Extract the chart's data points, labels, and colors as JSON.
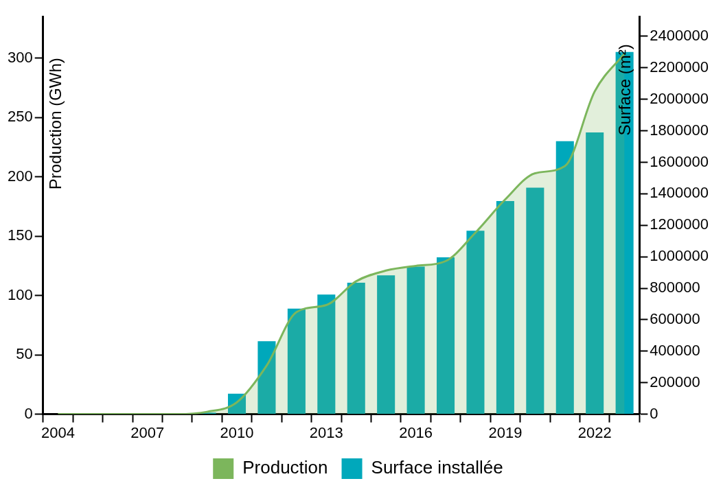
{
  "chart_data": {
    "type": "bar",
    "categories": [
      "2004",
      null,
      null,
      "2007",
      null,
      null,
      "2010",
      null,
      null,
      "2013",
      null,
      null,
      "2016",
      null,
      null,
      "2019",
      null,
      null,
      "2022",
      null
    ],
    "ylabel": "Production (GWh)",
    "y2label": "Surface (m²)",
    "ylim": [
      0,
      335
    ],
    "yticks": [
      0,
      50,
      100,
      150,
      200,
      250,
      300
    ],
    "y2lim": [
      0,
      2525000
    ],
    "y2ticks": [
      0,
      200000,
      400000,
      600000,
      800000,
      1000000,
      1200000,
      1400000,
      1600000,
      1800000,
      2000000,
      2200000,
      2400000
    ],
    "series": [
      {
        "name": "Production",
        "type": "area",
        "color": "#7cb65c",
        "values": [
          0,
          0,
          0,
          0,
          0,
          2,
          10,
          41,
          86,
          92,
          112,
          121,
          125,
          129,
          153,
          181,
          203,
          209,
          272,
          304
        ]
      },
      {
        "name": "Surface installée",
        "axis": "y2",
        "color": "#00a8bb",
        "values": [
          null,
          null,
          null,
          null,
          null,
          10000,
          130000,
          464000,
          671000,
          760000,
          835000,
          882000,
          937000,
          996000,
          1165000,
          1354000,
          1439000,
          1734000,
          1789000,
          2300000
        ]
      }
    ],
    "grid": false,
    "legend": "bottom"
  }
}
